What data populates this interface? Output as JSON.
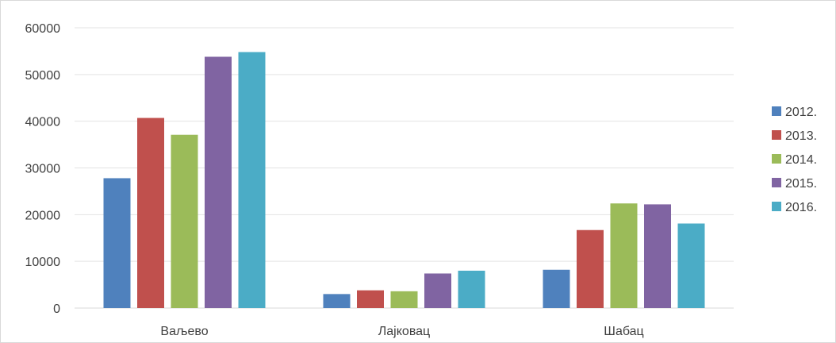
{
  "chart_data": {
    "type": "bar",
    "categories": [
      "Ваљево",
      "Лајковац",
      "Шабац"
    ],
    "series": [
      {
        "name": "2012.",
        "color": "#4f81bd",
        "values": [
          27800,
          3000,
          8200
        ]
      },
      {
        "name": "2013.",
        "color": "#c0504d",
        "values": [
          40700,
          3800,
          16700
        ]
      },
      {
        "name": "2014.",
        "color": "#9bbb59",
        "values": [
          37100,
          3600,
          22400
        ]
      },
      {
        "name": "2015.",
        "color": "#8064a2",
        "values": [
          53800,
          7400,
          22200
        ]
      },
      {
        "name": "2016.",
        "color": "#4bacc6",
        "values": [
          54800,
          8000,
          18100
        ]
      }
    ],
    "yticks": [
      "0",
      "10000",
      "20000",
      "30000",
      "40000",
      "50000",
      "60000"
    ],
    "ylim": [
      0,
      60000
    ],
    "title": "",
    "xlabel": "",
    "ylabel": "",
    "grid": true,
    "legend_position": "right"
  }
}
